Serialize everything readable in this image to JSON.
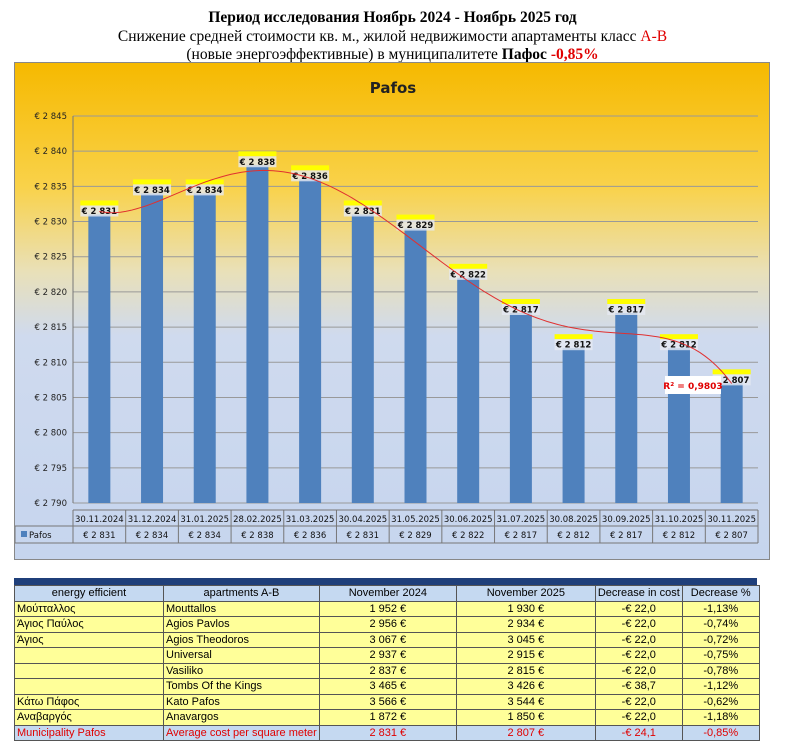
{
  "header": {
    "line1": "Период исследования Ноябрь 2024 - Ноябрь 2025 год",
    "line2_text": "Снижение средней стоимости кв. м., жилой недвижимости апартаменты класс ",
    "line2_class": "A-B",
    "line3_text": "(новые энергоэффективные) в муниципалитете ",
    "line3_city": "Пафос",
    "line3_change": "-0,85%"
  },
  "chart_data": {
    "type": "bar",
    "title": "Pafos",
    "categories": [
      "30.11.2024",
      "31.12.2024",
      "31.01.2025",
      "28.02.2025",
      "31.03.2025",
      "30.04.2025",
      "31.05.2025",
      "30.06.2025",
      "31.07.2025",
      "30.08.2025",
      "30.09.2025",
      "31.10.2025",
      "30.11.2025"
    ],
    "series": [
      {
        "name": "Pafos",
        "values": [
          2831,
          2834,
          2834,
          2838,
          2836,
          2831,
          2829,
          2822,
          2817,
          2812,
          2817,
          2812,
          2807
        ],
        "color": "#4f81bd"
      }
    ],
    "data_labels": [
      "€ 2 831",
      "€ 2 834",
      "€ 2 834",
      "€ 2 838",
      "€ 2 836",
      "€ 2 831",
      "€ 2 829",
      "€ 2 822",
      "€ 2 817",
      "€ 2 812",
      "€ 2 817",
      "€ 2 812",
      "€ 2 807"
    ],
    "ylim": [
      2790,
      2845
    ],
    "yticks": [
      "€ 2 790",
      "€ 2 795",
      "€ 2 800",
      "€ 2 805",
      "€ 2 810",
      "€ 2 815",
      "€ 2 820",
      "€ 2 825",
      "€ 2 830",
      "€ 2 835",
      "€ 2 840",
      "€ 2 845"
    ],
    "trendline": {
      "type": "polynomial",
      "label": "R² = 0,9803",
      "color": "#e03030"
    },
    "grid": true,
    "legend": "data-table"
  },
  "table": {
    "headers": [
      "energy efficient",
      "apartments A-B",
      "November 2024",
      "November 2025",
      "Decrease in cost",
      "Decrease %"
    ],
    "rows": [
      [
        "Μούτταλλος",
        "Mouttallos",
        "1 952 €",
        "1 930 €",
        "-€ 22,0",
        "-1,13%"
      ],
      [
        "Άγιος Παύλος",
        "Agios Pavlos",
        "2 956 €",
        "2 934 €",
        "-€ 22,0",
        "-0,74%"
      ],
      [
        "Άγιος",
        "Agios Theodoros",
        "3 067 €",
        "3 045 €",
        "-€ 22,0",
        "-0,72%"
      ],
      [
        "",
        "Universal",
        "2 937 €",
        "2 915 €",
        "-€ 22,0",
        "-0,75%"
      ],
      [
        "",
        "Vasiliko",
        "2 837 €",
        "2 815 €",
        "-€ 22,0",
        "-0,78%"
      ],
      [
        "",
        "Tombs Of the Kings",
        "3 465 €",
        "3 426 €",
        "-€ 38,7",
        "-1,12%"
      ],
      [
        "Κάτω Πάφος",
        "Kato Pafos",
        "3 566 €",
        "3 544 €",
        "-€ 22,0",
        "-0,62%"
      ],
      [
        "Αναβαργός",
        "Anavargos",
        "1 872 €",
        "1 850 €",
        "-€ 22,0",
        "-1,18%"
      ]
    ],
    "total": [
      "Municipality Pafos",
      "Average cost per square meter",
      "2 831 €",
      "2 807 €",
      "-€ 24,1",
      "-0,85%"
    ]
  }
}
